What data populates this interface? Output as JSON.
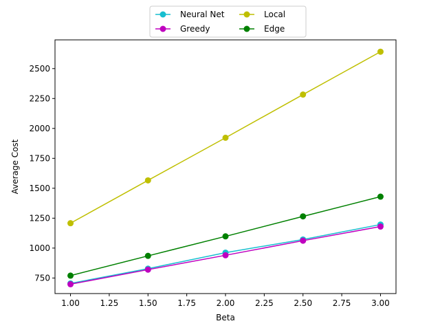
{
  "chart_data": {
    "type": "line",
    "title": "",
    "xlabel": "Beta",
    "ylabel": "Average Cost",
    "x": [
      1.0,
      1.5,
      2.0,
      2.5,
      3.0
    ],
    "xlim": [
      0.9,
      3.1
    ],
    "ylim": [
      620,
      2740
    ],
    "xticks": [
      1.0,
      1.25,
      1.5,
      1.75,
      2.0,
      2.25,
      2.5,
      2.75,
      3.0
    ],
    "xtick_labels": [
      "1.00",
      "1.25",
      "1.50",
      "1.75",
      "2.00",
      "2.25",
      "2.50",
      "2.75",
      "3.00"
    ],
    "yticks": [
      750,
      1000,
      1250,
      1500,
      1750,
      2000,
      2250,
      2500
    ],
    "ytick_labels": [
      "750",
      "1000",
      "1250",
      "1500",
      "1750",
      "2000",
      "2250",
      "2500"
    ],
    "grid": false,
    "legend_position": "top-center",
    "legend_columns": 2,
    "series": [
      {
        "name": "Neural Net",
        "color": "#17becf",
        "values": [
          705,
          828,
          962,
          1072,
          1197
        ]
      },
      {
        "name": "Greedy",
        "color": "#bf00bf",
        "values": [
          698,
          820,
          940,
          1062,
          1180
        ]
      },
      {
        "name": "Local",
        "color": "#bfbf00",
        "values": [
          1208,
          1566,
          1922,
          2283,
          2641
        ]
      },
      {
        "name": "Edge",
        "color": "#008000",
        "values": [
          770,
          935,
          1098,
          1265,
          1430
        ]
      }
    ]
  }
}
